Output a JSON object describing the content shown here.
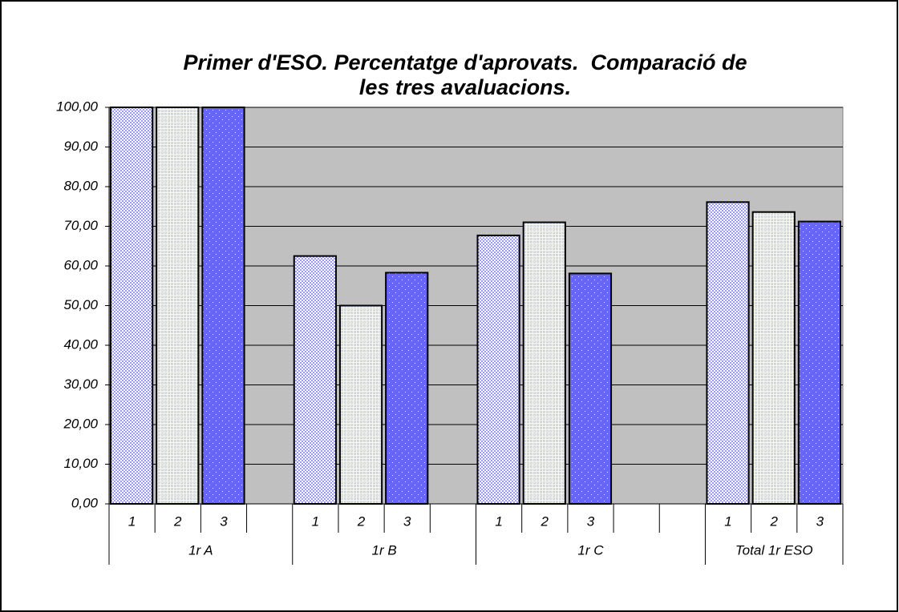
{
  "chart_data": {
    "type": "grouped-bar",
    "title": [
      "Primer d'ESO. Percentatge d'aprovats.  Comparació de",
      "les tres avaluacions."
    ],
    "groups": [
      {
        "name": "1r A",
        "categories": [
          "1",
          "2",
          "3",
          null
        ],
        "values": [
          100,
          100,
          100,
          null
        ]
      },
      {
        "name": "1r B",
        "categories": [
          "1",
          "2",
          "3",
          null
        ],
        "values": [
          62.5,
          50,
          58.3,
          null
        ]
      },
      {
        "name": "1r C",
        "categories": [
          "1",
          "2",
          "3",
          null,
          null
        ],
        "values": [
          67.7,
          71,
          58.1,
          null,
          null
        ]
      },
      {
        "name": "Total 1r ESO",
        "categories": [
          "1",
          "2",
          "3"
        ],
        "values": [
          76.1,
          73.6,
          71.2
        ]
      }
    ],
    "colors": [
      "#9999ff",
      "#ccccff",
      "#6666ff"
    ],
    "ylim": [
      0,
      100
    ],
    "yticks": [
      {
        "value": 0,
        "label": "0,00"
      },
      {
        "value": 10,
        "label": "10,00"
      },
      {
        "value": 20,
        "label": "20,00"
      },
      {
        "value": 30,
        "label": "30,00"
      },
      {
        "value": 40,
        "label": "40,00"
      },
      {
        "value": 50,
        "label": "50,00"
      },
      {
        "value": 60,
        "label": "60,00"
      },
      {
        "value": 70,
        "label": "70,00"
      },
      {
        "value": 80,
        "label": "80,00"
      },
      {
        "value": 90,
        "label": "90,00"
      },
      {
        "value": 100,
        "label": "100,00"
      }
    ],
    "grid": true
  }
}
